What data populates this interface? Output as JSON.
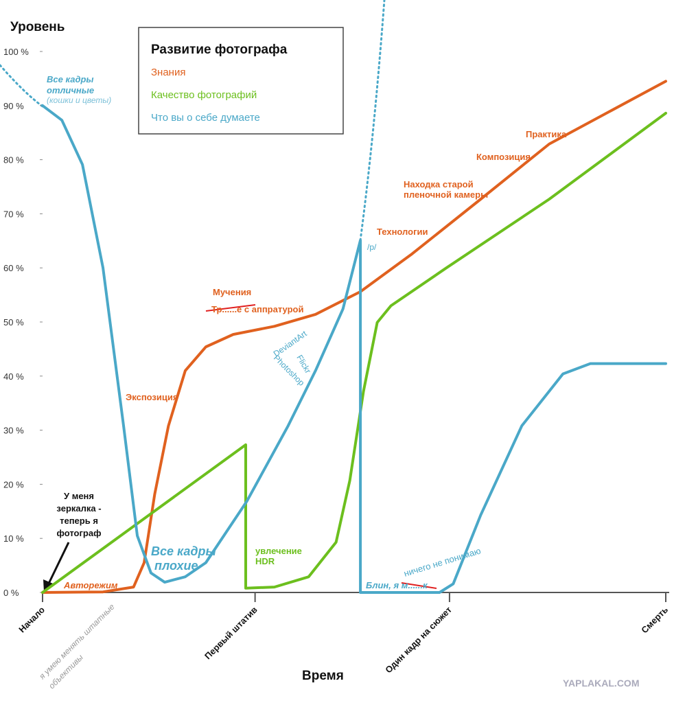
{
  "chart_data": {
    "type": "line",
    "y_label": "Уровень",
    "x_label": "Время",
    "legend_title": "Развитие фотографа",
    "watermark": "YAPLAKAL.COM",
    "xlim": [
      0,
      100
    ],
    "ylim": [
      0,
      100
    ],
    "xticks": [
      {
        "value": 0,
        "label": "Начало"
      },
      {
        "value": 34.1,
        "label": "Первый штатив"
      },
      {
        "value": 65.3,
        "label": "Один кадр на сюжет"
      },
      {
        "value": 100,
        "label": "Смерть"
      }
    ],
    "yticks": [
      {
        "value": 0,
        "label": "0 %"
      },
      {
        "value": 10,
        "label": "10 %"
      },
      {
        "value": 20,
        "label": "20 %"
      },
      {
        "value": 30,
        "label": "30 %"
      },
      {
        "value": 40,
        "label": "40 %"
      },
      {
        "value": 50,
        "label": "50 %"
      },
      {
        "value": 60,
        "label": "60 %"
      },
      {
        "value": 70,
        "label": "70 %"
      },
      {
        "value": 80,
        "label": "80 %"
      },
      {
        "value": 90,
        "label": "90 %"
      },
      {
        "value": 100,
        "label": "100 %"
      }
    ],
    "series": [
      {
        "name": "Знания",
        "color": "#e0611f",
        "x": [
          0,
          9.7,
          14.6,
          16.3,
          18.0,
          20.2,
          22.9,
          26.2,
          30.6,
          37.2,
          43.8,
          51.0,
          59.3,
          70.3,
          81.3,
          100
        ],
        "values": [
          0,
          0.1,
          1.0,
          5.5,
          18.2,
          30.8,
          41.0,
          45.4,
          47.7,
          49.2,
          51.4,
          55.6,
          62.6,
          72.7,
          82.9,
          94.5
        ]
      },
      {
        "name": "Качество фотографий",
        "color": "#6cbf1e",
        "x": [
          0,
          32.6,
          32.6,
          37.2,
          42.7,
          47.1,
          49.3,
          51.5,
          53.7,
          55.9,
          64.8,
          81.3,
          100
        ],
        "values": [
          0,
          27.3,
          0.8,
          1.0,
          2.9,
          9.3,
          20.7,
          37.2,
          49.9,
          53.0,
          60.0,
          72.7,
          88.6
        ]
      },
      {
        "name": "Что вы о себе думаете",
        "color": "#4aa8c8",
        "x": [
          0,
          3.1,
          6.4,
          9.7,
          13.0,
          15.2,
          17.4,
          19.6,
          22.9,
          26.2,
          32.8,
          39.4,
          43.8,
          48.2,
          51.0,
          51.0,
          63.7,
          65.9,
          70.3,
          76.9,
          83.5,
          87.9,
          100
        ],
        "values": [
          90,
          87.3,
          79.1,
          60.0,
          30.8,
          10.5,
          3.6,
          1.9,
          2.9,
          5.5,
          16.9,
          30.8,
          41.0,
          52.4,
          65.1,
          0,
          0,
          1.6,
          14.3,
          30.8,
          40.4,
          42.3,
          42.3
        ]
      }
    ],
    "annotations": [
      {
        "text": "Все кадры",
        "color": "#4aa8c8"
      },
      {
        "text": "отличные",
        "color": "#4aa8c8"
      },
      {
        "text": "(кошки и цветы)",
        "color": "#7cc0d8"
      },
      {
        "text": "У меня",
        "color": "#111111"
      },
      {
        "text": "зеркалка -",
        "color": "#111111"
      },
      {
        "text": "теперь я",
        "color": "#111111"
      },
      {
        "text": "фотограф",
        "color": "#111111"
      },
      {
        "text": "Авторежим",
        "color": "#e0611f"
      },
      {
        "text": "Экспозиция",
        "color": "#e0611f"
      },
      {
        "text": "Все кадры",
        "color": "#4aa8c8"
      },
      {
        "text": "плохие",
        "color": "#4aa8c8"
      },
      {
        "text": "Мучения",
        "color": "#e0611f"
      },
      {
        "text": "Тр......е с аппратурой",
        "color": "#e0611f"
      },
      {
        "text": "DeviantArt",
        "color": "#4aa8c8"
      },
      {
        "text": "Photoshop",
        "color": "#4aa8c8"
      },
      {
        "text": "Flickr",
        "color": "#4aa8c8"
      },
      {
        "text": "увлечение",
        "color": "#6cbf1e"
      },
      {
        "text": "HDR",
        "color": "#6cbf1e"
      },
      {
        "text": "/p/",
        "color": "#4aa8c8"
      },
      {
        "text": "Технологии",
        "color": "#e0611f"
      },
      {
        "text": "Находка старой",
        "color": "#e0611f"
      },
      {
        "text": "пленочной камеры",
        "color": "#e0611f"
      },
      {
        "text": "Композиция",
        "color": "#e0611f"
      },
      {
        "text": "Практика",
        "color": "#e0611f"
      },
      {
        "text": "Блин, я м......к",
        "color": "#4aa8c8"
      },
      {
        "text": "ничего не понимаю",
        "color": "#4aa8c8"
      },
      {
        "text": "я умею менять штатные",
        "color": "#999999"
      },
      {
        "text": "объективы",
        "color": "#999999"
      }
    ]
  }
}
